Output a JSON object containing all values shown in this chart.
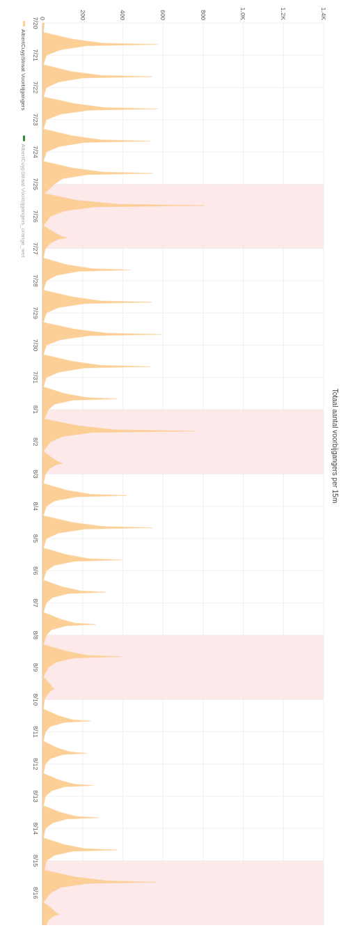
{
  "chart_data": {
    "type": "area",
    "title": "Totaal aantal voorbijgangers per 15m",
    "x": [
      "--07-20T00:00",
      "--07-20T07:00",
      "--07-20T12:00",
      "--07-20T15:00",
      "--07-20T16:00",
      "--07-20T17:00",
      "--07-20T20:00",
      "--07-21T00:00",
      "--07-21T07:00",
      "--07-21T12:00",
      "--07-21T15:00",
      "--07-21T16:00",
      "--07-21T17:00",
      "--07-21T20:00",
      "--07-22T00:00",
      "--07-22T07:00",
      "--07-22T12:00",
      "--07-22T15:00",
      "--07-22T16:00",
      "--07-22T17:00",
      "--07-22T20:00",
      "--07-23T00:00",
      "--07-23T07:00",
      "--07-23T12:00",
      "--07-23T15:00",
      "--07-23T16:00",
      "--07-23T17:00",
      "--07-23T20:00",
      "--07-24T00:00",
      "--07-24T07:00",
      "--07-24T12:00",
      "--07-24T15:00",
      "--07-24T16:00",
      "--07-24T17:00",
      "--07-24T20:00",
      "--07-25T00:00",
      "--07-25T07:00",
      "--07-25T12:00",
      "--07-25T15:00",
      "--07-25T16:00",
      "--07-25T17:00",
      "--07-25T20:00",
      "--07-26T00:00",
      "--07-26T07:00",
      "--07-26T12:00",
      "--07-26T15:00",
      "--07-26T16:00",
      "--07-26T17:00",
      "--07-26T20:00",
      "--07-27T00:00",
      "--07-27T07:00",
      "--07-27T12:00",
      "--07-27T15:00",
      "--07-27T16:00",
      "--07-27T17:00",
      "--07-27T20:00",
      "--07-28T00:00",
      "--07-28T07:00",
      "--07-28T12:00",
      "--07-28T15:00",
      "--07-28T16:00",
      "--07-28T17:00",
      "--07-28T20:00",
      "--07-29T00:00",
      "--07-29T07:00",
      "--07-29T12:00",
      "--07-29T15:00",
      "--07-29T16:00",
      "--07-29T17:00",
      "--07-29T20:00",
      "--07-30T00:00",
      "--07-30T07:00",
      "--07-30T12:00",
      "--07-30T15:00",
      "--07-30T16:00",
      "--07-30T17:00",
      "--07-30T20:00",
      "--07-31T00:00",
      "--07-31T07:00",
      "--07-31T12:00",
      "--07-31T15:00",
      "--07-31T16:00",
      "--07-31T17:00",
      "--07-31T20:00",
      "--08-01T00:00",
      "--08-01T07:00",
      "--08-01T12:00",
      "--08-01T15:00",
      "--08-01T16:00",
      "--08-01T17:00",
      "--08-01T20:00",
      "--08-02T00:00",
      "--08-02T07:00",
      "--08-02T12:00",
      "--08-02T15:00",
      "--08-02T16:00",
      "--08-02T17:00",
      "--08-02T20:00",
      "--08-03T00:00",
      "--08-03T07:00",
      "--08-03T12:00",
      "--08-03T15:00",
      "--08-03T16:00",
      "--08-03T17:00",
      "--08-03T20:00",
      "--08-04T00:00",
      "--08-04T07:00",
      "--08-04T12:00",
      "--08-04T15:00",
      "--08-04T16:00",
      "--08-04T17:00",
      "--08-04T20:00",
      "--08-05T00:00",
      "--08-05T07:00",
      "--08-05T12:00",
      "--08-05T15:00",
      "--08-05T16:00",
      "--08-05T17:00",
      "--08-05T20:00",
      "--08-06T00:00",
      "--08-06T07:00",
      "--08-06T12:00",
      "--08-06T15:00",
      "--08-06T16:00",
      "--08-06T17:00",
      "--08-06T20:00",
      "--08-07T00:00",
      "--08-07T07:00",
      "--08-07T12:00",
      "--08-07T15:00",
      "--08-07T16:00",
      "--08-07T17:00",
      "--08-07T20:00",
      "--08-08T00:00",
      "--08-08T07:00",
      "--08-08T12:00",
      "--08-08T15:00",
      "--08-08T16:00",
      "--08-08T17:00",
      "--08-08T20:00",
      "--08-09T00:00",
      "--08-09T07:00",
      "--08-09T12:00",
      "--08-09T15:00",
      "--08-09T16:00",
      "--08-09T17:00",
      "--08-09T20:00",
      "--08-10T00:00",
      "--08-10T07:00",
      "--08-10T12:00",
      "--08-10T15:00",
      "--08-10T16:00",
      "--08-10T17:00",
      "--08-10T20:00",
      "--08-11T00:00",
      "--08-11T07:00",
      "--08-11T12:00",
      "--08-11T15:00",
      "--08-11T16:00",
      "--08-11T17:00",
      "--08-11T20:00",
      "--08-12T00:00",
      "--08-12T07:00",
      "--08-12T12:00",
      "--08-12T15:00",
      "--08-12T16:00",
      "--08-12T17:00",
      "--08-12T20:00",
      "--08-13T00:00",
      "--08-13T07:00",
      "--08-13T12:00",
      "--08-13T15:00",
      "--08-13T16:00",
      "--08-13T17:00",
      "--08-13T20:00",
      "--08-14T00:00",
      "--08-14T07:00",
      "--08-14T12:00",
      "--08-14T15:00",
      "--08-14T16:00",
      "--08-14T17:00",
      "--08-14T20:00",
      "--08-15T00:00",
      "--08-15T07:00",
      "--08-15T12:00",
      "--08-15T15:00",
      "--08-15T16:00",
      "--08-15T17:00",
      "--08-15T20:00",
      "--08-16T00:00",
      "--08-16T07:00",
      "--08-16T12:00",
      "--08-16T15:00",
      "--08-16T16:00",
      "--08-16T17:00",
      "--08-16T20:00",
      "--08-17T00:00"
    ],
    "series": [
      {
        "name": "AlbertCuypStraat Voorbijgangers",
        "color": "#fbcf95",
        "values": [
          10,
          5,
          150,
          300,
          575,
          220,
          90,
          20,
          5,
          140,
          290,
          545,
          200,
          80,
          20,
          5,
          160,
          310,
          575,
          230,
          90,
          20,
          5,
          150,
          290,
          535,
          210,
          85,
          20,
          5,
          150,
          300,
          550,
          220,
          100,
          60,
          10,
          170,
          380,
          805,
          260,
          110,
          40,
          5,
          60,
          95,
          125,
          80,
          40,
          15,
          5,
          120,
          250,
          440,
          180,
          70,
          20,
          5,
          150,
          290,
          545,
          210,
          80,
          20,
          5,
          160,
          320,
          590,
          230,
          90,
          20,
          5,
          150,
          290,
          535,
          210,
          85,
          20,
          5,
          110,
          220,
          370,
          150,
          60,
          30,
          10,
          180,
          360,
          760,
          250,
          100,
          40,
          5,
          50,
          80,
          100,
          70,
          35,
          15,
          5,
          120,
          240,
          420,
          170,
          60,
          20,
          5,
          150,
          300,
          545,
          210,
          80,
          20,
          5,
          120,
          230,
          395,
          160,
          60,
          20,
          5,
          100,
          190,
          315,
          130,
          50,
          20,
          5,
          90,
          160,
          265,
          120,
          45,
          20,
          5,
          120,
          220,
          390,
          160,
          70,
          30,
          5,
          35,
          50,
          60,
          45,
          25,
          10,
          5,
          80,
          150,
          240,
          110,
          40,
          15,
          5,
          75,
          140,
          220,
          100,
          40,
          15,
          5,
          85,
          160,
          255,
          110,
          45,
          15,
          5,
          90,
          170,
          280,
          120,
          50,
          15,
          5,
          110,
          210,
          370,
          150,
          60,
          20,
          10,
          160,
          320,
          565,
          220,
          90,
          40,
          5,
          50,
          70,
          85,
          60,
          30,
          20
        ]
      },
      {
        "name": "AlbertCuypStraat Voorbijgangers_orange_wet",
        "color": "#2e8b3e",
        "values": [
          null,
          null,
          null,
          null,
          null,
          null,
          null,
          null,
          null,
          null,
          null,
          null,
          null,
          null,
          null,
          null,
          null,
          null,
          null,
          null,
          null,
          null,
          null,
          null,
          null,
          null,
          null,
          null,
          null,
          null,
          null,
          null,
          null,
          null,
          null,
          null,
          null,
          null,
          null,
          null,
          null,
          null,
          null,
          null,
          null,
          null,
          null,
          null,
          null,
          null,
          null,
          null,
          null,
          null,
          null,
          null,
          null,
          null,
          null,
          null,
          null,
          null,
          null,
          null,
          null,
          null,
          null,
          null,
          null,
          null,
          null,
          null,
          null,
          null,
          null,
          null,
          null,
          null,
          null,
          null,
          null,
          null,
          null,
          null,
          null,
          null,
          null,
          null,
          null,
          null,
          null,
          null,
          null,
          null,
          null,
          null,
          null,
          null,
          null,
          null,
          null,
          null,
          null,
          null,
          null,
          null,
          null,
          null,
          null,
          null,
          null,
          null,
          null,
          null,
          null,
          null,
          null,
          null,
          null,
          null,
          null,
          null,
          null,
          null,
          null,
          null,
          null,
          null,
          null,
          null,
          null,
          null,
          null,
          null,
          null,
          null,
          null,
          null,
          null,
          null,
          null,
          null,
          null,
          null,
          null,
          null,
          null,
          null,
          null,
          null,
          null,
          null,
          null,
          null,
          null,
          null,
          null,
          null,
          null,
          null,
          null,
          null,
          null,
          null,
          null,
          null,
          null,
          null,
          null,
          null,
          null,
          null,
          null,
          null,
          null,
          null,
          null,
          null,
          null,
          null,
          null,
          null,
          null,
          null,
          null,
          null,
          null,
          null,
          null,
          null,
          null,
          null,
          null,
          null,
          null,
          null,
          null
        ]
      }
    ],
    "orientation": "horizontal",
    "ylim": [
      "--08-17T00:00",
      "--07-20T00:00"
    ],
    "yticks": [
      {
        "value": "--07-20",
        "label": "7/20"
      },
      {
        "value": "--07-21",
        "label": "7/21"
      },
      {
        "value": "--07-22",
        "label": "7/22"
      },
      {
        "value": "--07-23",
        "label": "7/23"
      },
      {
        "value": "--07-24",
        "label": "7/24"
      },
      {
        "value": "--07-25",
        "label": "7/25"
      },
      {
        "value": "--07-26",
        "label": "7/26"
      },
      {
        "value": "--07-27",
        "label": "7/27"
      },
      {
        "value": "--07-28",
        "label": "7/28"
      },
      {
        "value": "--07-29",
        "label": "7/29"
      },
      {
        "value": "--07-30",
        "label": "7/30"
      },
      {
        "value": "--07-31",
        "label": "7/31"
      },
      {
        "value": "--08-01",
        "label": "8/1"
      },
      {
        "value": "--08-02",
        "label": "8/2"
      },
      {
        "value": "--08-03",
        "label": "8/3"
      },
      {
        "value": "--08-04",
        "label": "8/4"
      },
      {
        "value": "--08-05",
        "label": "8/5"
      },
      {
        "value": "--08-06",
        "label": "8/6"
      },
      {
        "value": "--08-07",
        "label": "8/7"
      },
      {
        "value": "--08-08",
        "label": "8/8"
      },
      {
        "value": "--08-09",
        "label": "8/9"
      },
      {
        "value": "--08-10",
        "label": "8/10"
      },
      {
        "value": "--08-11",
        "label": "8/11"
      },
      {
        "value": "--08-12",
        "label": "8/12"
      },
      {
        "value": "--08-13",
        "label": "8/13"
      },
      {
        "value": "--08-14",
        "label": "8/14"
      },
      {
        "value": "--08-15",
        "label": "8/15"
      },
      {
        "value": "--08-16",
        "label": "8/16"
      }
    ],
    "xlim": [
      0,
      1400
    ],
    "xticks": [
      0,
      200,
      400,
      600,
      800,
      {
        "value": 1000,
        "label": "1.0K"
      },
      {
        "value": 1200,
        "label": "1.2K"
      },
      {
        "value": 1400,
        "label": "1.4K"
      }
    ],
    "bands": [
      {
        "axis": "y",
        "from": "--07-25",
        "to": "--07-27",
        "color": "#fde8ea"
      },
      {
        "axis": "y",
        "from": "--08-01",
        "to": "--08-03",
        "color": "#fde8ea"
      },
      {
        "axis": "y",
        "from": "--08-08",
        "to": "--08-10",
        "color": "#fde8ea"
      },
      {
        "axis": "y",
        "from": "--08-15",
        "to": "--08-17",
        "color": "#fde8ea"
      }
    ],
    "grid": true,
    "legend": "left"
  }
}
